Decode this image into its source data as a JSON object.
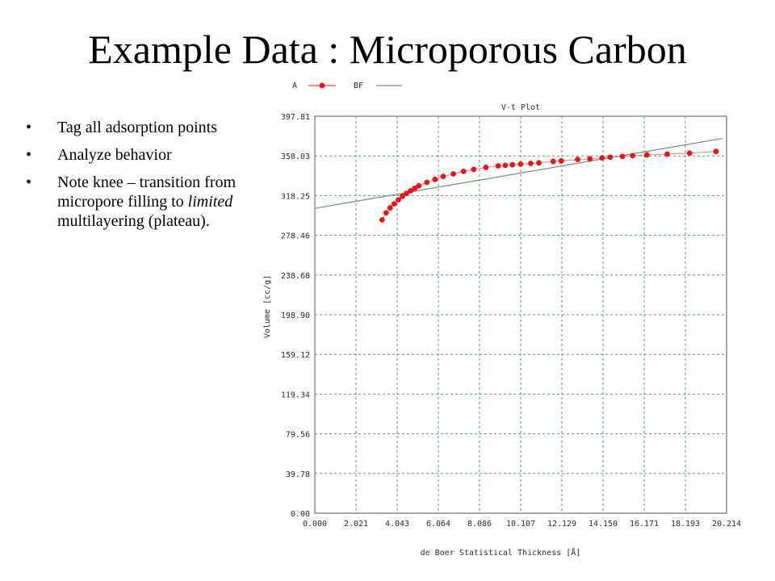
{
  "slide": {
    "title": "Example Data : Microporous Carbon",
    "bullets": [
      {
        "bullet": "•",
        "text": "Tag all adsorption points"
      },
      {
        "bullet": "•",
        "text": "Analyze behavior"
      },
      {
        "bullet": "•",
        "text_before": "Note knee – transition from micropore filling to ",
        "text_italic": "limited",
        "text_after": " multilayering (plateau)."
      }
    ]
  },
  "chart_data": {
    "type": "scatter",
    "title": "V-t Plot",
    "xlabel": "de Boer Statistical Thickness [Å]",
    "ylabel": "Volume [cc/g]",
    "xlim": [
      0,
      20.214
    ],
    "ylim": [
      0,
      397.81
    ],
    "grid": true,
    "legend_position": "top-left",
    "x_ticks": [
      "0.000",
      "2.021",
      "4.043",
      "6.064",
      "8.086",
      "10.107",
      "12.129",
      "14.150",
      "16.171",
      "18.193",
      "20.214"
    ],
    "y_ticks": [
      "0.00",
      "39.78",
      "79.56",
      "119.34",
      "159.12",
      "198.90",
      "238.68",
      "278.46",
      "318.25",
      "358.03",
      "397.81"
    ],
    "series": [
      {
        "name": "A",
        "kind": "points",
        "color": "#e8141a",
        "points": [
          [
            3.3,
            294.0
          ],
          [
            3.5,
            301.0
          ],
          [
            3.7,
            306.0
          ],
          [
            3.9,
            310.0
          ],
          [
            4.1,
            314.0
          ],
          [
            4.3,
            317.5
          ],
          [
            4.5,
            320.5
          ],
          [
            4.7,
            323.0
          ],
          [
            4.9,
            325.5
          ],
          [
            5.1,
            328.0
          ],
          [
            5.5,
            331.5
          ],
          [
            5.9,
            334.5
          ],
          [
            6.3,
            337.5
          ],
          [
            6.8,
            340.0
          ],
          [
            7.3,
            342.5
          ],
          [
            7.8,
            344.5
          ],
          [
            8.4,
            346.5
          ],
          [
            9.0,
            348.0
          ],
          [
            9.35,
            348.5
          ],
          [
            9.7,
            349.2
          ],
          [
            10.1,
            349.8
          ],
          [
            10.6,
            350.5
          ],
          [
            11.0,
            351.0
          ],
          [
            11.7,
            352.5
          ],
          [
            12.1,
            353.0
          ],
          [
            12.9,
            354.5
          ],
          [
            13.5,
            355.0
          ],
          [
            14.1,
            356.0
          ],
          [
            14.5,
            356.8
          ],
          [
            15.1,
            357.5
          ],
          [
            15.6,
            358.3
          ],
          [
            16.3,
            359.0
          ],
          [
            17.3,
            359.8
          ],
          [
            18.4,
            360.8
          ],
          [
            19.7,
            362.5
          ]
        ]
      },
      {
        "name": "BF",
        "kind": "line",
        "color": "#6f8f82",
        "points": [
          [
            0.0,
            305.5
          ],
          [
            20.0,
            375.5
          ]
        ]
      }
    ]
  }
}
